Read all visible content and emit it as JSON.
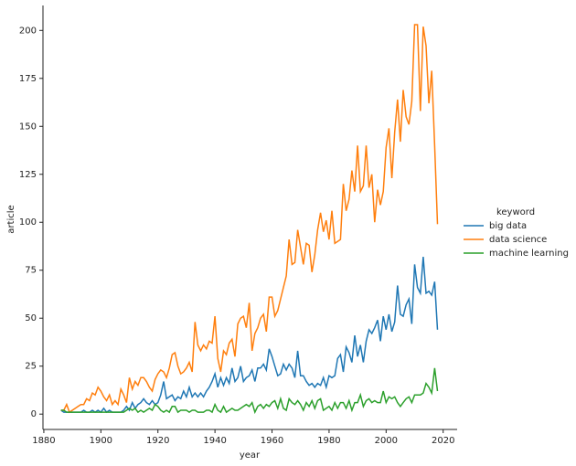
{
  "chart_data": {
    "type": "line",
    "x_label": "year",
    "y_label": "article",
    "legend_title": "keyword",
    "legend_position": "right",
    "x": [
      1886,
      1887,
      1888,
      1889,
      1890,
      1891,
      1892,
      1893,
      1894,
      1895,
      1896,
      1897,
      1898,
      1899,
      1900,
      1901,
      1902,
      1903,
      1904,
      1905,
      1906,
      1907,
      1908,
      1909,
      1910,
      1911,
      1912,
      1913,
      1914,
      1915,
      1916,
      1917,
      1918,
      1919,
      1920,
      1921,
      1922,
      1923,
      1924,
      1925,
      1926,
      1927,
      1928,
      1929,
      1930,
      1931,
      1932,
      1933,
      1934,
      1935,
      1936,
      1937,
      1938,
      1939,
      1940,
      1941,
      1942,
      1943,
      1944,
      1945,
      1946,
      1947,
      1948,
      1949,
      1950,
      1951,
      1952,
      1953,
      1954,
      1955,
      1956,
      1957,
      1958,
      1959,
      1960,
      1961,
      1962,
      1963,
      1964,
      1965,
      1966,
      1967,
      1968,
      1969,
      1970,
      1971,
      1972,
      1973,
      1974,
      1975,
      1976,
      1977,
      1978,
      1979,
      1980,
      1981,
      1982,
      1983,
      1984,
      1985,
      1986,
      1987,
      1988,
      1989,
      1990,
      1991,
      1992,
      1993,
      1994,
      1995,
      1996,
      1997,
      1998,
      1999,
      2000,
      2001,
      2002,
      2003,
      2004,
      2005,
      2006,
      2007,
      2008,
      2009,
      2010,
      2011,
      2012,
      2013,
      2014,
      2015,
      2016,
      2017,
      2018
    ],
    "series": [
      {
        "name": "big data",
        "color": "#1f77b4",
        "values": [
          2,
          1,
          1,
          1,
          1,
          1,
          1,
          1,
          2,
          1,
          1,
          2,
          1,
          2,
          1,
          3,
          1,
          2,
          1,
          1,
          1,
          1,
          2,
          4,
          2,
          6,
          3,
          5,
          6,
          8,
          6,
          5,
          7,
          5,
          6,
          10,
          17,
          8,
          9,
          10,
          7,
          9,
          8,
          12,
          9,
          14,
          9,
          11,
          9,
          11,
          9,
          12,
          14,
          17,
          21,
          14,
          19,
          15,
          19,
          16,
          24,
          17,
          19,
          25,
          17,
          19,
          20,
          23,
          17,
          24,
          24,
          26,
          23,
          34,
          30,
          25,
          20,
          21,
          26,
          23,
          26,
          24,
          19,
          33,
          20,
          20,
          17,
          15,
          16,
          14,
          16,
          15,
          19,
          14,
          20,
          19,
          20,
          29,
          31,
          22,
          35,
          32,
          27,
          41,
          30,
          36,
          27,
          38,
          44,
          42,
          45,
          49,
          38,
          51,
          44,
          52,
          43,
          48,
          67,
          52,
          51,
          57,
          60,
          47,
          78,
          66,
          63,
          82,
          63,
          64,
          62,
          69,
          44
        ]
      },
      {
        "name": "data science",
        "color": "#ff7f0e",
        "values": [
          2,
          2,
          5,
          1,
          2,
          3,
          4,
          5,
          5,
          8,
          7,
          11,
          10,
          14,
          12,
          9,
          7,
          10,
          5,
          7,
          5,
          13,
          10,
          6,
          19,
          13,
          17,
          15,
          19,
          19,
          17,
          14,
          12,
          18,
          21,
          23,
          22,
          19,
          24,
          31,
          32,
          25,
          21,
          22,
          24,
          27,
          22,
          48,
          36,
          33,
          36,
          34,
          38,
          37,
          51,
          29,
          22,
          33,
          31,
          37,
          39,
          30,
          47,
          50,
          51,
          45,
          58,
          33,
          42,
          45,
          50,
          52,
          43,
          61,
          61,
          51,
          54,
          60,
          66,
          72,
          91,
          78,
          79,
          96,
          87,
          78,
          89,
          88,
          74,
          83,
          96,
          105,
          95,
          101,
          91,
          106,
          89,
          90,
          91,
          120,
          106,
          112,
          127,
          116,
          140,
          116,
          119,
          140,
          118,
          125,
          100,
          117,
          109,
          116,
          139,
          149,
          123,
          147,
          164,
          142,
          169,
          155,
          151,
          163,
          203,
          203,
          158,
          202,
          192,
          162,
          179,
          140,
          99
        ]
      },
      {
        "name": "machine learning",
        "color": "#2ca02c",
        "values": [
          2,
          2,
          1,
          1,
          1,
          1,
          1,
          1,
          1,
          1,
          1,
          1,
          1,
          1,
          1,
          1,
          1,
          1,
          1,
          1,
          1,
          1,
          1,
          2,
          3,
          2,
          3,
          1,
          2,
          1,
          2,
          3,
          2,
          5,
          4,
          2,
          1,
          2,
          1,
          4,
          4,
          1,
          2,
          2,
          2,
          1,
          2,
          2,
          1,
          1,
          1,
          2,
          2,
          1,
          5,
          2,
          1,
          4,
          1,
          2,
          3,
          2,
          2,
          3,
          4,
          5,
          4,
          6,
          1,
          4,
          5,
          3,
          5,
          4,
          6,
          7,
          3,
          8,
          3,
          2,
          8,
          6,
          5,
          7,
          5,
          2,
          6,
          4,
          7,
          3,
          7,
          8,
          2,
          3,
          4,
          2,
          6,
          3,
          6,
          6,
          3,
          7,
          2,
          6,
          6,
          10,
          4,
          7,
          8,
          6,
          7,
          6,
          6,
          12,
          6,
          9,
          8,
          9,
          6,
          4,
          6,
          8,
          9,
          6,
          10,
          10,
          10,
          11,
          16,
          14,
          11,
          24,
          12
        ]
      }
    ],
    "xlim": [
      1879.7,
      2024.9
    ],
    "xticks": [
      1880,
      1900,
      1920,
      1940,
      1960,
      1980,
      2000,
      2020
    ],
    "ylim": [
      -8,
      213
    ],
    "yticks": [
      0,
      25,
      50,
      75,
      100,
      125,
      150,
      175,
      200
    ]
  }
}
